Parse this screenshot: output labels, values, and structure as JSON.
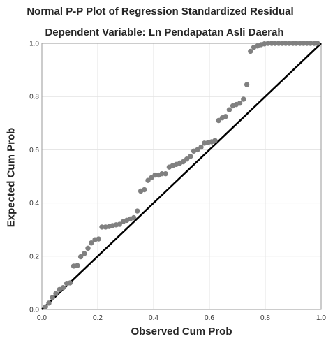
{
  "chart_data": {
    "type": "scatter",
    "title": "Normal P-P Plot of Regression Standardized Residual",
    "subtitle": "Dependent Variable: Ln Pendapatan Asli Daerah",
    "xlabel": "Observed Cum Prob",
    "ylabel": "Expected Cum Prob",
    "xlim": [
      0,
      1
    ],
    "ylim": [
      0,
      1
    ],
    "xticks": [
      "0.0",
      "0.2",
      "0.4",
      "0.6",
      "0.8",
      "1.0"
    ],
    "yticks": [
      "0.0",
      "0.2",
      "0.4",
      "0.6",
      "0.8",
      "1.0"
    ],
    "grid": true,
    "reference_line": [
      [
        0,
        0
      ],
      [
        1,
        1
      ]
    ],
    "point_color": "#808080",
    "line_color": "#000000",
    "series": [
      {
        "x": [
          0.013,
          0.025,
          0.038,
          0.05,
          0.063,
          0.076,
          0.089,
          0.101,
          0.114,
          0.127,
          0.139,
          0.152,
          0.165,
          0.177,
          0.19,
          0.203,
          0.215,
          0.228,
          0.241,
          0.253,
          0.266,
          0.278,
          0.291,
          0.304,
          0.316,
          0.329,
          0.342,
          0.354,
          0.367,
          0.38,
          0.392,
          0.405,
          0.418,
          0.43,
          0.443,
          0.456,
          0.468,
          0.481,
          0.494,
          0.506,
          0.519,
          0.532,
          0.544,
          0.557,
          0.57,
          0.582,
          0.595,
          0.608,
          0.62,
          0.633,
          0.646,
          0.658,
          0.671,
          0.684,
          0.696,
          0.709,
          0.722,
          0.734,
          0.747,
          0.759,
          0.772,
          0.785,
          0.797,
          0.81,
          0.823,
          0.835,
          0.848,
          0.861,
          0.873,
          0.886,
          0.899,
          0.911,
          0.924,
          0.937,
          0.949,
          0.962,
          0.975,
          0.987
        ],
        "y": [
          0.01,
          0.024,
          0.045,
          0.06,
          0.075,
          0.082,
          0.098,
          0.1,
          0.163,
          0.165,
          0.198,
          0.21,
          0.23,
          0.25,
          0.262,
          0.265,
          0.31,
          0.31,
          0.312,
          0.315,
          0.318,
          0.32,
          0.33,
          0.335,
          0.34,
          0.345,
          0.37,
          0.445,
          0.45,
          0.485,
          0.495,
          0.505,
          0.505,
          0.51,
          0.51,
          0.535,
          0.54,
          0.545,
          0.55,
          0.555,
          0.565,
          0.575,
          0.595,
          0.6,
          0.61,
          0.625,
          0.627,
          0.63,
          0.635,
          0.71,
          0.72,
          0.725,
          0.75,
          0.765,
          0.77,
          0.775,
          0.79,
          0.845,
          0.97,
          0.985,
          0.99,
          0.995,
          0.998,
          1.0,
          1.0,
          1.0,
          1.0,
          1.0,
          1.0,
          1.0,
          1.0,
          1.0,
          1.0,
          1.0,
          1.0,
          1.0,
          1.0,
          1.0
        ]
      }
    ]
  }
}
